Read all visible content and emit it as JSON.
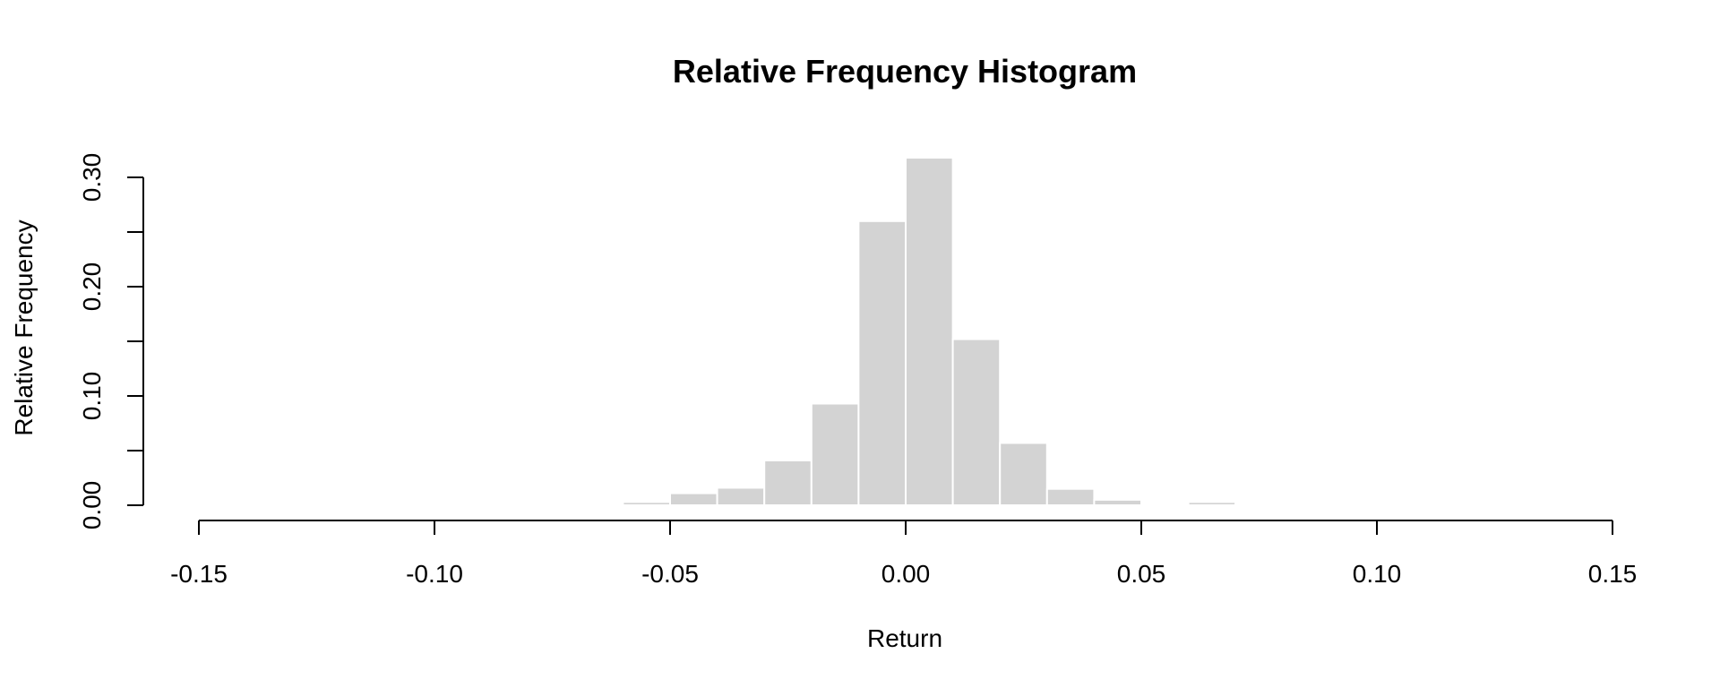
{
  "chart_data": {
    "type": "bar",
    "title": "Relative Frequency Histogram",
    "xlabel": "Return",
    "ylabel": "Relative Frequency",
    "xlim": [
      -0.15,
      0.15
    ],
    "ylim": [
      0,
      0.3
    ],
    "xticks": [
      -0.15,
      -0.1,
      -0.05,
      0.0,
      0.05,
      0.1,
      0.15
    ],
    "xtick_labels": [
      "-0.15",
      "-0.10",
      "-0.05",
      "0.00",
      "0.05",
      "0.10",
      "0.15"
    ],
    "yticks": [
      0.0,
      0.05,
      0.1,
      0.15,
      0.2,
      0.25,
      0.3
    ],
    "ytick_labels": [
      "0.00",
      "",
      "0.10",
      "",
      "0.20",
      "",
      "0.30"
    ],
    "bin_edges": [
      -0.06,
      -0.05,
      -0.04,
      -0.03,
      -0.02,
      -0.01,
      0.0,
      0.01,
      0.02,
      0.03,
      0.04,
      0.05,
      0.06,
      0.07,
      0.08
    ],
    "values": [
      0.003,
      0.011,
      0.016,
      0.041,
      0.093,
      0.26,
      0.318,
      0.152,
      0.057,
      0.015,
      0.005,
      0.0,
      0.003,
      0.001
    ],
    "grid": false,
    "bar_color": "#d3d3d3"
  }
}
